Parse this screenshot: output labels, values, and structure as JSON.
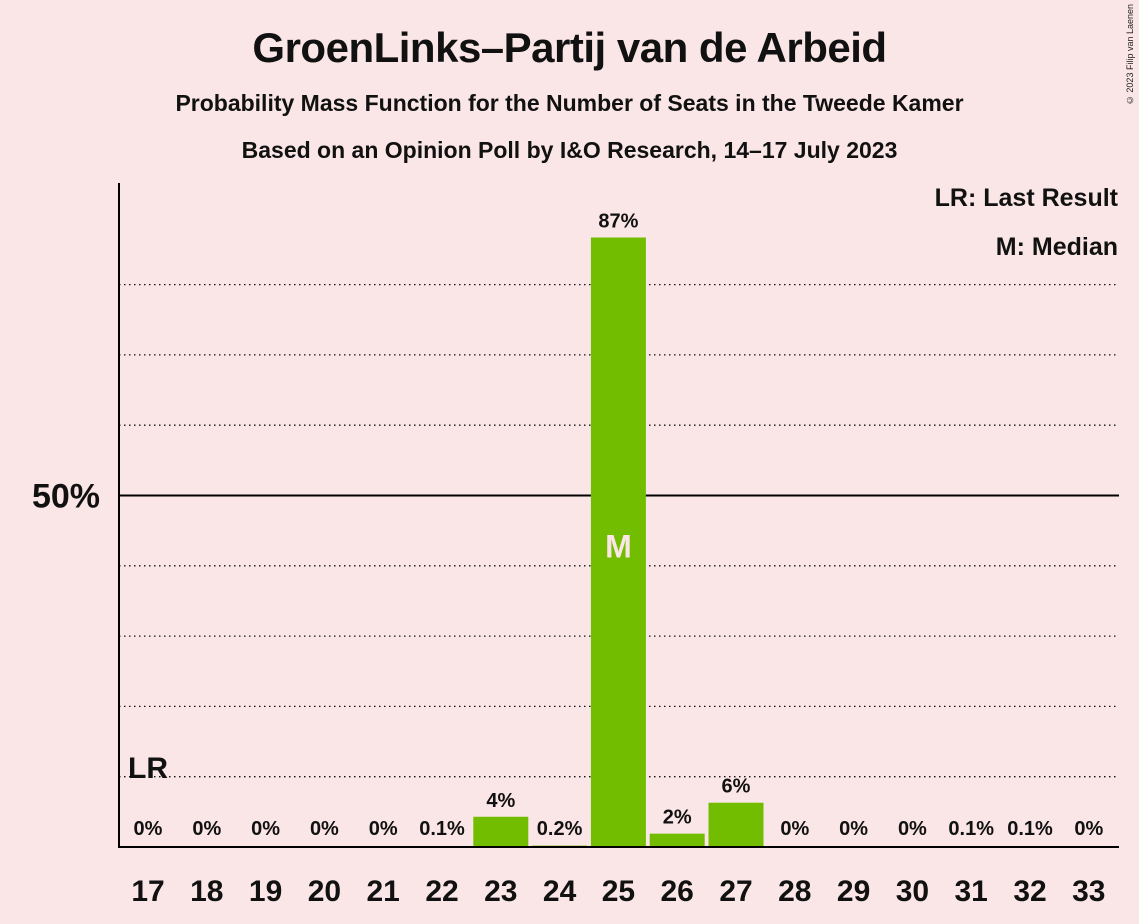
{
  "header": {
    "title": "GroenLinks–Partij van de Arbeid",
    "subtitle": "Probability Mass Function for the Number of Seats in the Tweede Kamer",
    "source": "Based on an Opinion Poll by I&O Research, 14–17 July 2023",
    "copyright": "© 2023 Filip van Laenen"
  },
  "legend": {
    "last_result": "LR: Last Result",
    "median": "M: Median"
  },
  "colors": {
    "background": "#fbe6e7",
    "bar": "#73bd00",
    "axis": "#000000"
  },
  "chart_data": {
    "type": "bar",
    "categories": [
      17,
      18,
      19,
      20,
      21,
      22,
      23,
      24,
      25,
      26,
      27,
      28,
      29,
      30,
      31,
      32,
      33
    ],
    "values": [
      0,
      0,
      0,
      0,
      0,
      0.1,
      4.3,
      0.2,
      86.7,
      1.9,
      6.3,
      0,
      0,
      0,
      0.1,
      0.1,
      0
    ],
    "labels": [
      "0%",
      "0%",
      "0%",
      "0%",
      "0%",
      "0.1%",
      "4%",
      "0.2%",
      "87%",
      "2%",
      "6%",
      "0%",
      "0%",
      "0%",
      "0.1%",
      "0.1%",
      "0%"
    ],
    "ylim": [
      0,
      95
    ],
    "y_tick_labels": [
      {
        "value": 50,
        "label": "50%"
      }
    ],
    "gridlines_dotted": [
      10,
      20,
      30,
      40,
      60,
      70,
      80
    ],
    "gridline_solid": 50,
    "last_result": {
      "seat": 17,
      "label": "LR"
    },
    "median": {
      "seat": 25,
      "label": "M"
    }
  }
}
